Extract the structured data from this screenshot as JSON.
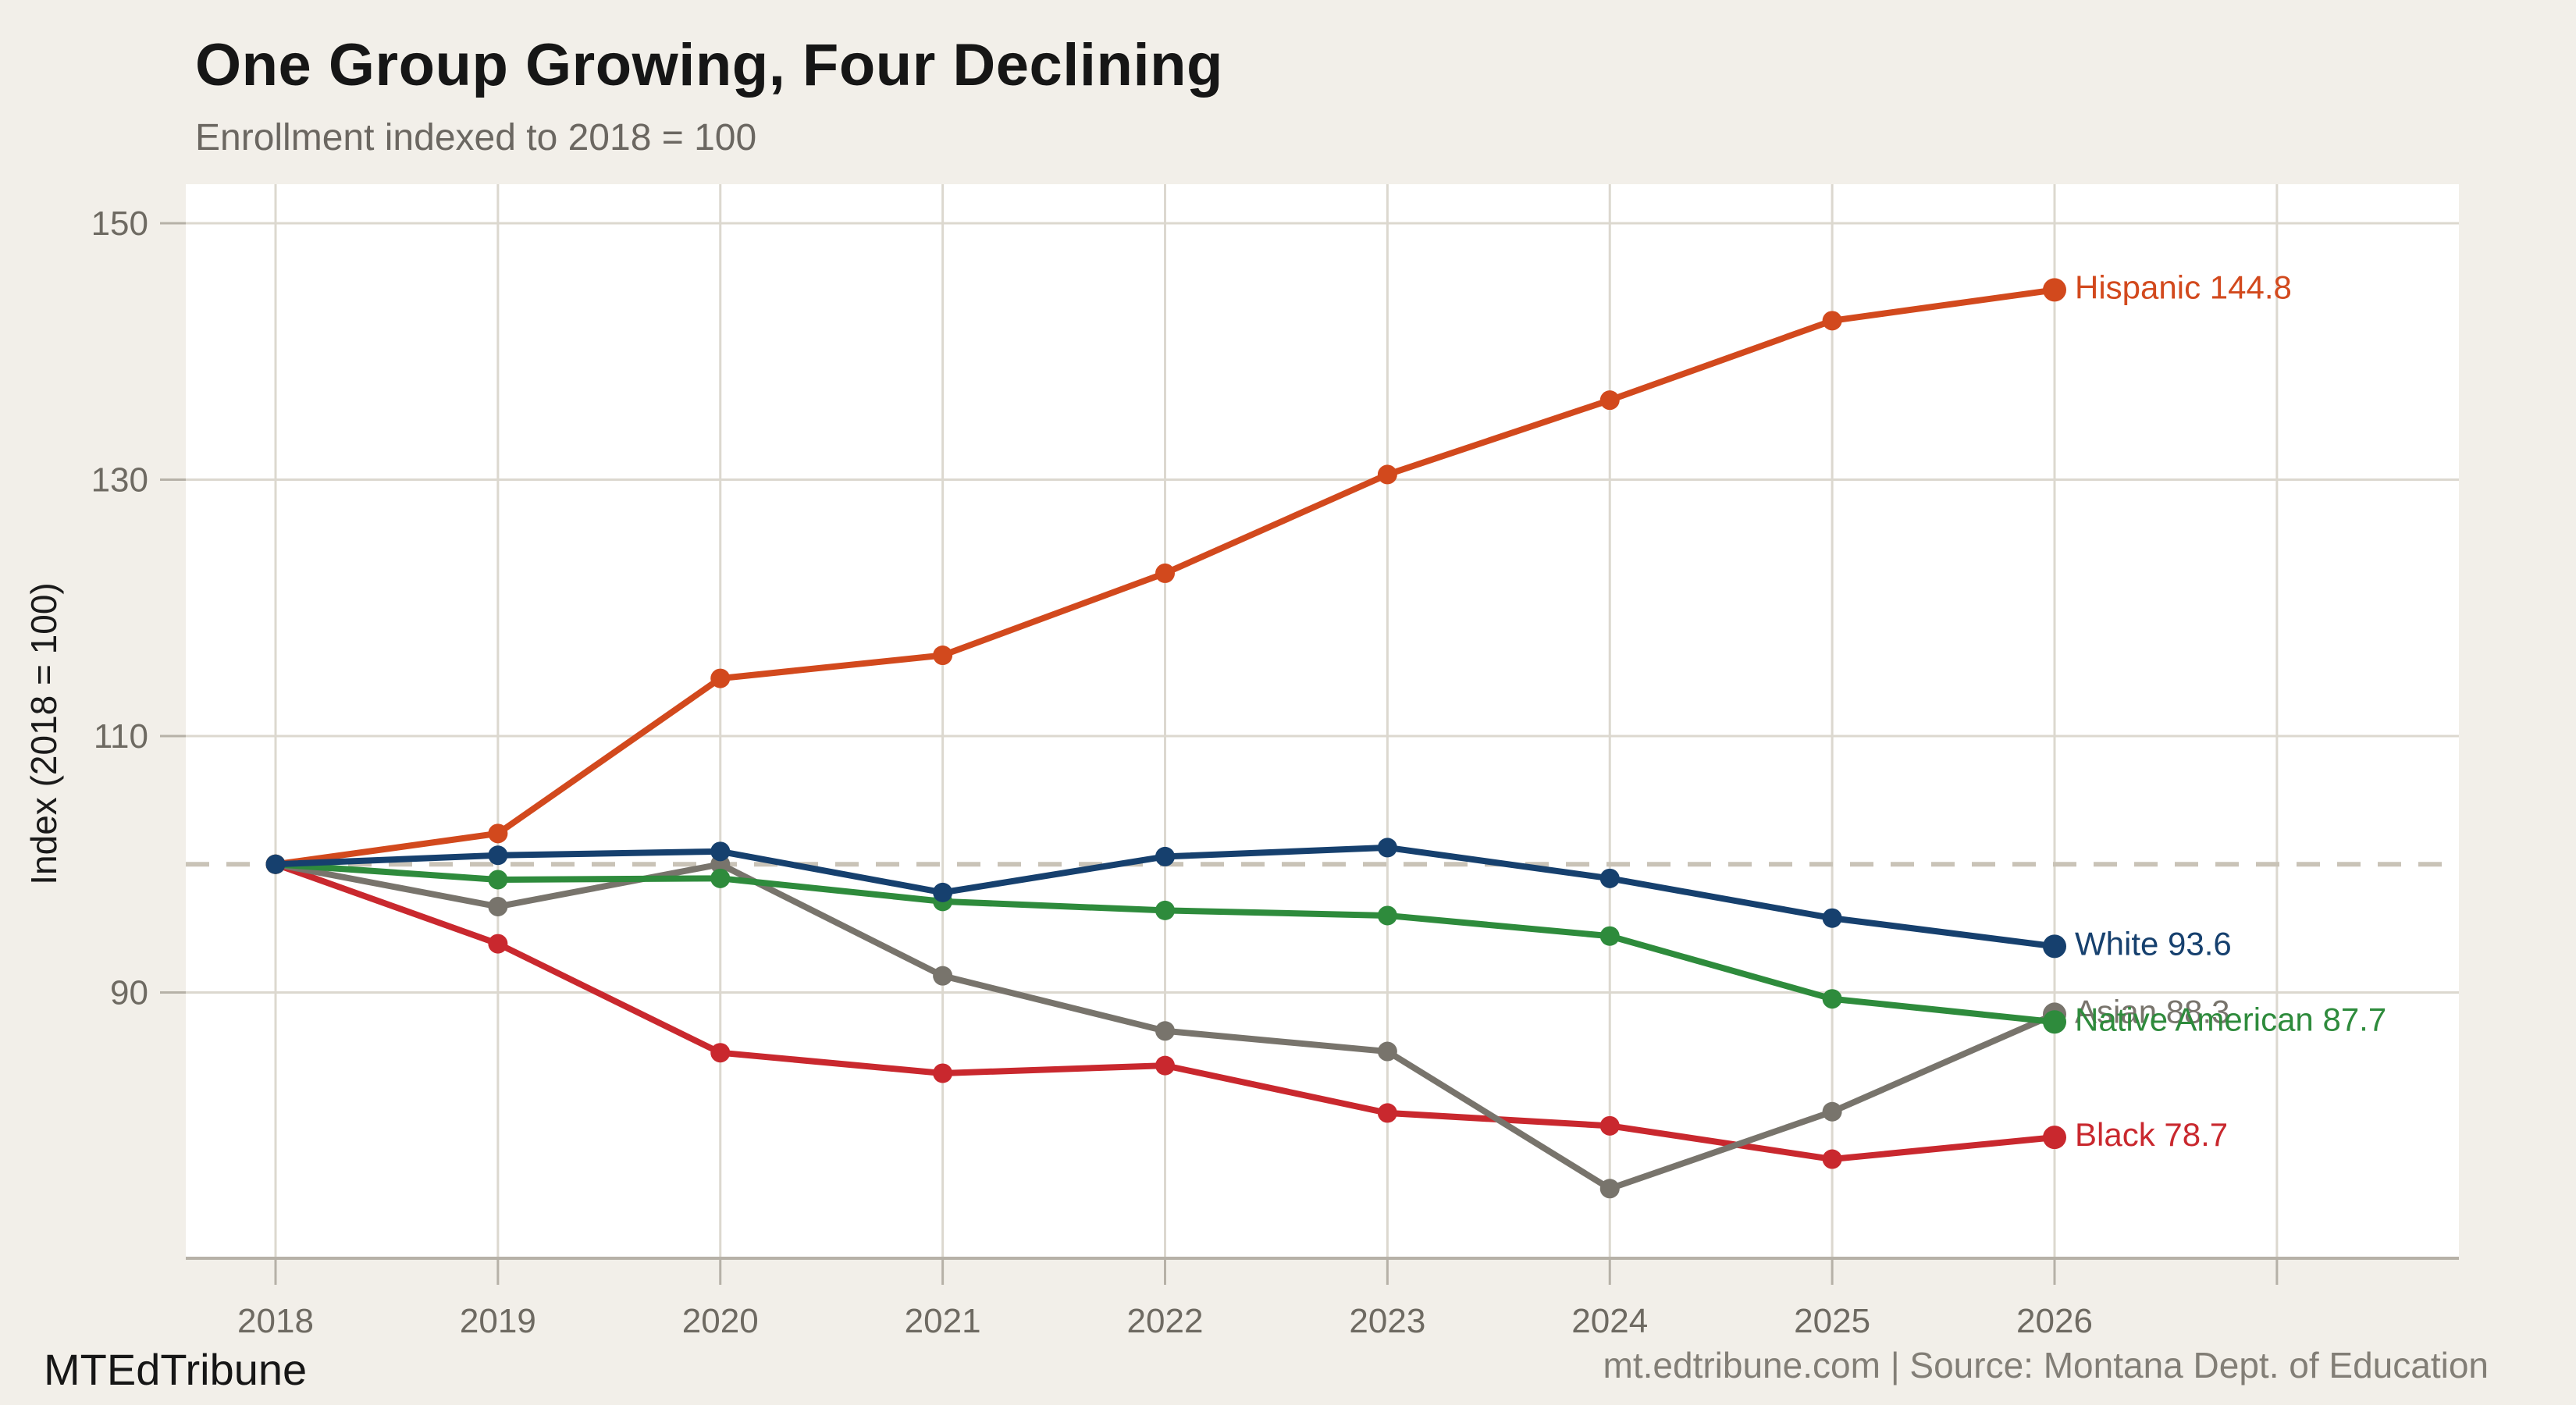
{
  "header": {
    "title": "One Group Growing, Four Declining",
    "subtitle": "Enrollment indexed to 2018 = 100"
  },
  "footer": {
    "brand": "MTEdTribune",
    "source": "mt.edtribune.com | Source: Montana Dept. of Education"
  },
  "chart_data": {
    "type": "line",
    "title": "One Group Growing, Four Declining",
    "subtitle": "Enrollment indexed to 2018 = 100",
    "xlabel": "",
    "ylabel": "Index (2018 = 100)",
    "x": [
      2018,
      2019,
      2020,
      2021,
      2022,
      2023,
      2024,
      2025,
      2026
    ],
    "yticks": [
      90,
      110,
      130,
      150
    ],
    "ylim": [
      69,
      152
    ],
    "baseline": 100,
    "grid": true,
    "legend_position": "end-of-line-labels",
    "background": "#f2efe9",
    "panel_color": "#ffffff",
    "grid_color": "#dcd8cf",
    "axis_color": "#b6b1a7",
    "baseline_color": "#c9c3b7",
    "tick_label_color": "#6e6a62",
    "series": [
      {
        "name": "Hispanic",
        "color": "#d2491d",
        "end_label": "Hispanic 144.8",
        "end_value": 144.8,
        "values": [
          100,
          102.4,
          114.5,
          116.3,
          122.7,
          130.4,
          136.2,
          142.4,
          144.8
        ]
      },
      {
        "name": "White",
        "color": "#16406e",
        "end_label": "White 93.6",
        "end_value": 93.6,
        "values": [
          100,
          100.7,
          101.0,
          97.8,
          100.6,
          101.3,
          98.9,
          95.8,
          93.6
        ]
      },
      {
        "name": "Asian",
        "color": "#78746c",
        "end_label": "Asian 88.3",
        "end_value": 88.3,
        "values": [
          100,
          96.7,
          100.0,
          91.3,
          87.0,
          85.4,
          74.7,
          80.7,
          88.3
        ]
      },
      {
        "name": "Native American",
        "color": "#2e8b3c",
        "end_label": "Native American 87.7",
        "end_value": 87.7,
        "values": [
          100,
          98.8,
          98.9,
          97.1,
          96.4,
          96.0,
          94.4,
          89.5,
          87.7
        ]
      },
      {
        "name": "Black",
        "color": "#c9282e",
        "end_label": "Black 78.7",
        "end_value": 78.7,
        "values": [
          100,
          93.8,
          85.3,
          83.7,
          84.3,
          80.6,
          79.6,
          77.0,
          78.7
        ]
      }
    ],
    "draw_order": [
      "Black",
      "Asian",
      "Native American",
      "Hispanic",
      "White"
    ]
  }
}
